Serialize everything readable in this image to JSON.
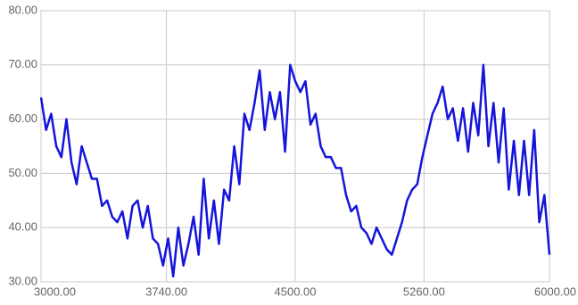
{
  "chart_data": {
    "type": "line",
    "x": [
      3000,
      3030,
      3060,
      3090,
      3120,
      3150,
      3180,
      3210,
      3240,
      3270,
      3300,
      3330,
      3360,
      3390,
      3420,
      3450,
      3480,
      3510,
      3540,
      3570,
      3600,
      3630,
      3660,
      3690,
      3720,
      3750,
      3780,
      3810,
      3840,
      3870,
      3900,
      3930,
      3960,
      3990,
      4020,
      4050,
      4080,
      4110,
      4140,
      4170,
      4200,
      4230,
      4260,
      4290,
      4320,
      4350,
      4380,
      4410,
      4440,
      4470,
      4500,
      4530,
      4560,
      4590,
      4620,
      4650,
      4680,
      4710,
      4740,
      4770,
      4800,
      4830,
      4860,
      4890,
      4920,
      4950,
      4980,
      5010,
      5040,
      5070,
      5100,
      5130,
      5160,
      5190,
      5220,
      5250,
      5280,
      5310,
      5340,
      5370,
      5400,
      5430,
      5460,
      5490,
      5520,
      5550,
      5580,
      5610,
      5640,
      5670,
      5700,
      5730,
      5760,
      5790,
      5820,
      5850,
      5880,
      5910,
      5940,
      5970,
      6000
    ],
    "series": [
      {
        "color": "#1414dc",
        "values": [
          64,
          58,
          61,
          55,
          53,
          60,
          52,
          48,
          55,
          52,
          49,
          49,
          44,
          45,
          42,
          41,
          43,
          38,
          44,
          45,
          40,
          44,
          38,
          37,
          33,
          38,
          31,
          40,
          33,
          37,
          42,
          35,
          49,
          38,
          45,
          37,
          47,
          45,
          55,
          48,
          61,
          58,
          63,
          69,
          58,
          65,
          60,
          65,
          54,
          70,
          67,
          65,
          67,
          59,
          61,
          55,
          53,
          53,
          51,
          51,
          46,
          43,
          44,
          40,
          39,
          37,
          40,
          38,
          36,
          35,
          38,
          41,
          45,
          47,
          48,
          53,
          57,
          61,
          63,
          66,
          60,
          62,
          56,
          62,
          54,
          63,
          57,
          70,
          55,
          63,
          52,
          62,
          47,
          56,
          46,
          56,
          46,
          58,
          41,
          46,
          35
        ]
      }
    ],
    "xlim": [
      3000,
      6000
    ],
    "xticks": [
      {
        "value": 3000,
        "label": "3000.00"
      },
      {
        "value": 3740,
        "label": "3740.00"
      },
      {
        "value": 4500,
        "label": "4500.00"
      },
      {
        "value": 5260,
        "label": "5260.00"
      },
      {
        "value": 6000,
        "label": "6000.00"
      }
    ],
    "ylim": [
      30,
      80
    ],
    "yticks": [
      {
        "value": 30,
        "label": "30.00"
      },
      {
        "value": 40,
        "label": "40.00"
      },
      {
        "value": 50,
        "label": "50.00"
      },
      {
        "value": 60,
        "label": "60.00"
      },
      {
        "value": 70,
        "label": "70.00"
      },
      {
        "value": 80,
        "label": "80.00"
      }
    ],
    "grid": true
  }
}
